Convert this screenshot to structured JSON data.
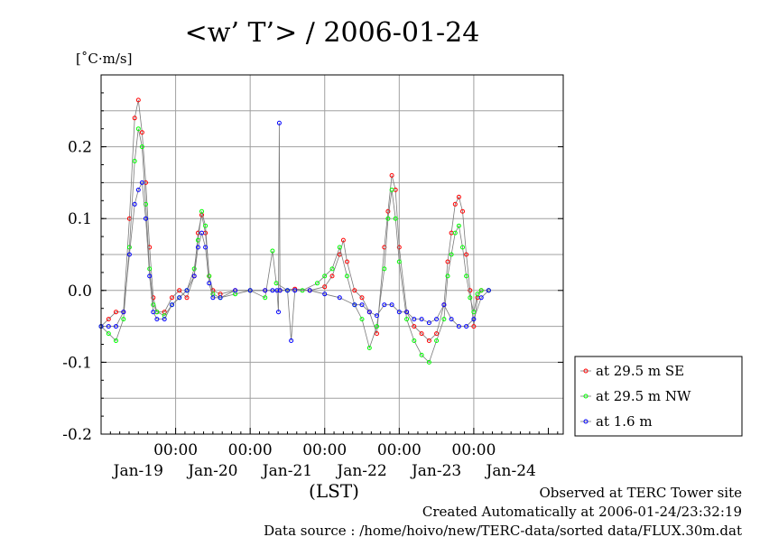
{
  "chart_data": {
    "type": "line",
    "title": "<w’ T’> / 2006-01-24",
    "ylabel": "[˚C·m/s]",
    "xlabel": "(LST)",
    "ylim": [
      -0.2,
      0.3
    ],
    "yticks": [
      "0.2",
      "0.1",
      "0.0",
      "-0.1",
      "-0.2"
    ],
    "ytick_values": [
      0.2,
      0.1,
      0.0,
      -0.1,
      -0.2
    ],
    "xlim_days": [
      0,
      6.2
    ],
    "time_ticks": [
      "00:00",
      "00:00",
      "00:00",
      "00:00",
      "00:00"
    ],
    "date_labels": [
      "Jan-19",
      "Jan-20",
      "Jan-21",
      "Jan-22",
      "Jan-23",
      "Jan-24"
    ],
    "grid": true,
    "legend_position": "outside-right",
    "series": [
      {
        "name": "at 29.5 m SE",
        "color": "#ff0000",
        "points": [
          [
            0.0,
            -0.05
          ],
          [
            0.1,
            -0.04
          ],
          [
            0.2,
            -0.03
          ],
          [
            0.3,
            -0.03
          ],
          [
            0.38,
            0.1
          ],
          [
            0.45,
            0.24
          ],
          [
            0.5,
            0.265
          ],
          [
            0.55,
            0.22
          ],
          [
            0.6,
            0.15
          ],
          [
            0.65,
            0.06
          ],
          [
            0.7,
            -0.01
          ],
          [
            0.75,
            -0.03
          ],
          [
            0.85,
            -0.03
          ],
          [
            0.95,
            -0.01
          ],
          [
            1.05,
            0.0
          ],
          [
            1.15,
            -0.01
          ],
          [
            1.25,
            0.02
          ],
          [
            1.3,
            0.08
          ],
          [
            1.35,
            0.105
          ],
          [
            1.4,
            0.08
          ],
          [
            1.45,
            0.02
          ],
          [
            1.5,
            0.0
          ],
          [
            1.6,
            -0.005
          ],
          [
            1.8,
            0.0
          ],
          [
            2.0,
            0.0
          ],
          [
            2.2,
            0.0
          ],
          [
            2.4,
            0.0
          ],
          [
            2.6,
            0.002
          ],
          [
            2.8,
            0.0
          ],
          [
            3.0,
            0.005
          ],
          [
            3.1,
            0.02
          ],
          [
            3.2,
            0.05
          ],
          [
            3.25,
            0.07
          ],
          [
            3.3,
            0.04
          ],
          [
            3.4,
            0.0
          ],
          [
            3.5,
            -0.01
          ],
          [
            3.6,
            -0.03
          ],
          [
            3.7,
            -0.06
          ],
          [
            3.8,
            0.06
          ],
          [
            3.85,
            0.11
          ],
          [
            3.9,
            0.16
          ],
          [
            3.95,
            0.14
          ],
          [
            4.0,
            0.06
          ],
          [
            4.1,
            -0.03
          ],
          [
            4.2,
            -0.05
          ],
          [
            4.3,
            -0.06
          ],
          [
            4.4,
            -0.07
          ],
          [
            4.5,
            -0.06
          ],
          [
            4.6,
            -0.02
          ],
          [
            4.65,
            0.04
          ],
          [
            4.7,
            0.08
          ],
          [
            4.75,
            0.12
          ],
          [
            4.8,
            0.13
          ],
          [
            4.85,
            0.11
          ],
          [
            4.9,
            0.05
          ],
          [
            4.95,
            0.0
          ],
          [
            5.0,
            -0.05
          ],
          [
            5.05,
            -0.01
          ],
          [
            5.1,
            0.0
          ],
          [
            5.2,
            0.0
          ]
        ]
      },
      {
        "name": "at 29.5 m NW",
        "color": "#00ff00",
        "points": [
          [
            0.0,
            -0.05
          ],
          [
            0.1,
            -0.06
          ],
          [
            0.2,
            -0.07
          ],
          [
            0.3,
            -0.04
          ],
          [
            0.38,
            0.06
          ],
          [
            0.45,
            0.18
          ],
          [
            0.5,
            0.225
          ],
          [
            0.55,
            0.2
          ],
          [
            0.6,
            0.12
          ],
          [
            0.65,
            0.03
          ],
          [
            0.7,
            -0.02
          ],
          [
            0.75,
            -0.03
          ],
          [
            0.85,
            -0.035
          ],
          [
            0.95,
            -0.02
          ],
          [
            1.05,
            -0.01
          ],
          [
            1.15,
            0.0
          ],
          [
            1.25,
            0.03
          ],
          [
            1.3,
            0.07
          ],
          [
            1.35,
            0.11
          ],
          [
            1.4,
            0.09
          ],
          [
            1.45,
            0.02
          ],
          [
            1.5,
            -0.005
          ],
          [
            1.6,
            -0.01
          ],
          [
            1.8,
            -0.005
          ],
          [
            2.0,
            0.0
          ],
          [
            2.2,
            -0.01
          ],
          [
            2.3,
            0.055
          ],
          [
            2.35,
            0.01
          ],
          [
            2.5,
            0.0
          ],
          [
            2.7,
            0.0
          ],
          [
            2.9,
            0.01
          ],
          [
            3.0,
            0.02
          ],
          [
            3.1,
            0.03
          ],
          [
            3.2,
            0.06
          ],
          [
            3.3,
            0.02
          ],
          [
            3.4,
            -0.02
          ],
          [
            3.5,
            -0.04
          ],
          [
            3.6,
            -0.08
          ],
          [
            3.7,
            -0.05
          ],
          [
            3.8,
            0.03
          ],
          [
            3.85,
            0.1
          ],
          [
            3.9,
            0.14
          ],
          [
            3.95,
            0.1
          ],
          [
            4.0,
            0.04
          ],
          [
            4.1,
            -0.04
          ],
          [
            4.2,
            -0.07
          ],
          [
            4.3,
            -0.09
          ],
          [
            4.4,
            -0.1
          ],
          [
            4.5,
            -0.07
          ],
          [
            4.6,
            -0.04
          ],
          [
            4.65,
            0.02
          ],
          [
            4.7,
            0.05
          ],
          [
            4.75,
            0.08
          ],
          [
            4.8,
            0.09
          ],
          [
            4.85,
            0.06
          ],
          [
            4.9,
            0.02
          ],
          [
            4.95,
            -0.01
          ],
          [
            5.0,
            -0.03
          ],
          [
            5.05,
            -0.005
          ],
          [
            5.1,
            0.0
          ],
          [
            5.2,
            0.0
          ]
        ]
      },
      {
        "name": "at 1.6 m",
        "color": "#0000ff",
        "points": [
          [
            0.0,
            -0.05
          ],
          [
            0.1,
            -0.05
          ],
          [
            0.2,
            -0.05
          ],
          [
            0.3,
            -0.03
          ],
          [
            0.38,
            0.05
          ],
          [
            0.45,
            0.12
          ],
          [
            0.5,
            0.14
          ],
          [
            0.55,
            0.15
          ],
          [
            0.6,
            0.1
          ],
          [
            0.65,
            0.02
          ],
          [
            0.7,
            -0.03
          ],
          [
            0.75,
            -0.04
          ],
          [
            0.85,
            -0.04
          ],
          [
            0.95,
            -0.02
          ],
          [
            1.05,
            -0.01
          ],
          [
            1.15,
            0.0
          ],
          [
            1.25,
            0.02
          ],
          [
            1.3,
            0.06
          ],
          [
            1.35,
            0.08
          ],
          [
            1.4,
            0.06
          ],
          [
            1.45,
            0.01
          ],
          [
            1.5,
            -0.01
          ],
          [
            1.6,
            -0.01
          ],
          [
            1.8,
            0.0
          ],
          [
            2.0,
            0.0
          ],
          [
            2.2,
            0.0
          ],
          [
            2.3,
            0.0
          ],
          [
            2.36,
            0.0
          ],
          [
            2.38,
            -0.03
          ],
          [
            2.39,
            0.233
          ],
          [
            2.4,
            0.0
          ],
          [
            2.5,
            0.0
          ],
          [
            2.55,
            -0.07
          ],
          [
            2.6,
            0.0
          ],
          [
            2.8,
            0.0
          ],
          [
            3.0,
            -0.005
          ],
          [
            3.2,
            -0.01
          ],
          [
            3.4,
            -0.02
          ],
          [
            3.5,
            -0.02
          ],
          [
            3.6,
            -0.03
          ],
          [
            3.7,
            -0.035
          ],
          [
            3.8,
            -0.02
          ],
          [
            3.9,
            -0.02
          ],
          [
            4.0,
            -0.03
          ],
          [
            4.1,
            -0.03
          ],
          [
            4.2,
            -0.04
          ],
          [
            4.3,
            -0.04
          ],
          [
            4.4,
            -0.045
          ],
          [
            4.5,
            -0.04
          ],
          [
            4.6,
            -0.02
          ],
          [
            4.7,
            -0.04
          ],
          [
            4.8,
            -0.05
          ],
          [
            4.9,
            -0.05
          ],
          [
            5.0,
            -0.04
          ],
          [
            5.1,
            -0.01
          ],
          [
            5.2,
            0.0
          ]
        ]
      }
    ],
    "annotations": [
      "Observed at TERC Tower site",
      "Created Automatically at 2006-01-24/23:32:19",
      "Data source : /home/hoivo/new/TERC-data/sorted  data/FLUX.30m.dat"
    ]
  }
}
